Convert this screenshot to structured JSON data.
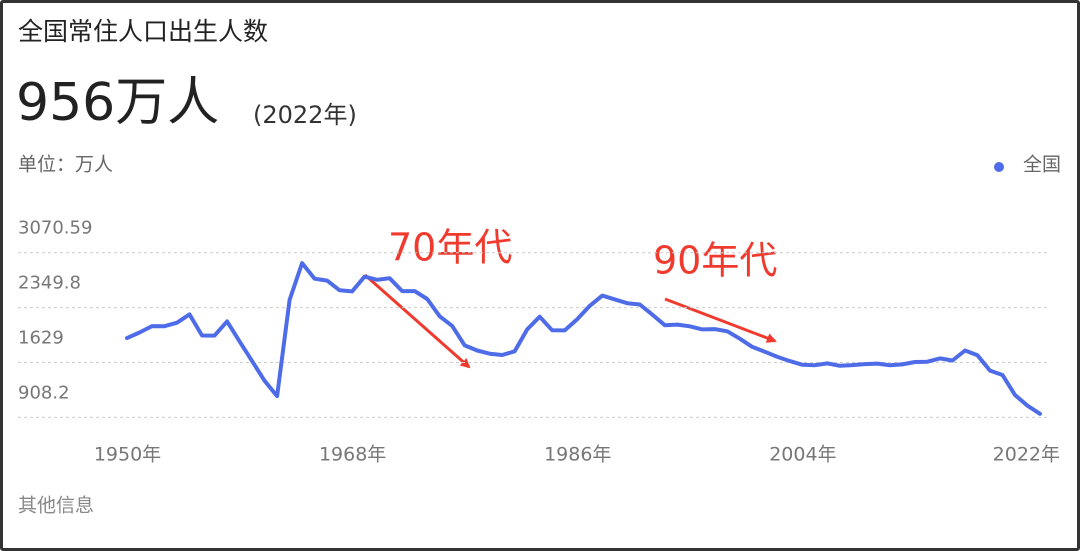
{
  "chart_data": {
    "type": "line",
    "title": "全国常住人口出生人数",
    "headline": "956万人",
    "headline_note": "(2022年)",
    "unit_label": "单位：万人",
    "footer": "其他信息",
    "annotations": [
      "70年代",
      "90年代"
    ],
    "legend_position": "top-right",
    "grid": true,
    "x": [
      1949,
      1950,
      1951,
      1952,
      1953,
      1954,
      1955,
      1956,
      1957,
      1958,
      1959,
      1960,
      1961,
      1962,
      1963,
      1964,
      1965,
      1966,
      1967,
      1968,
      1969,
      1970,
      1971,
      1972,
      1973,
      1974,
      1975,
      1976,
      1977,
      1978,
      1979,
      1980,
      1981,
      1982,
      1983,
      1984,
      1985,
      1986,
      1987,
      1988,
      1989,
      1990,
      1991,
      1992,
      1993,
      1994,
      1995,
      1996,
      1997,
      1998,
      1999,
      2000,
      2001,
      2002,
      2003,
      2004,
      2005,
      2006,
      2007,
      2008,
      2009,
      2010,
      2011,
      2012,
      2013,
      2014,
      2015,
      2016,
      2017,
      2018,
      2019,
      2020,
      2021,
      2022
    ],
    "series": [
      {
        "name": "全国",
        "color": "#4f6ce8",
        "values": [
          1950,
          2023,
          2107,
          2105,
          2151,
          2260,
          1984,
          1982,
          2169,
          1905,
          1647,
          1389,
          1188,
          2451,
          2934,
          2729,
          2704,
          2577,
          2563,
          2757,
          2715,
          2736,
          2567,
          2566,
          2463,
          2235,
          2109,
          1853,
          1786,
          1745,
          1727,
          1776,
          2064,
          2230,
          2052,
          2050,
          2196,
          2374,
          2508,
          2457,
          2407,
          2391,
          2258,
          2119,
          2126,
          2104,
          2063,
          2067,
          2038,
          1942,
          1834,
          1771,
          1702,
          1647,
          1599,
          1593,
          1617,
          1585,
          1595,
          1608,
          1615,
          1592,
          1604,
          1635,
          1640,
          1683,
          1655,
          1786,
          1723,
          1523,
          1465,
          1202,
          1062,
          956
        ]
      }
    ],
    "xlim": [
      1949,
      2022
    ],
    "xticks": [
      {
        "value": 1950,
        "label": "1950年"
      },
      {
        "value": 1968,
        "label": "1968年"
      },
      {
        "value": 1986,
        "label": "1986年"
      },
      {
        "value": 2004,
        "label": "2004年"
      },
      {
        "value": 2022,
        "label": "2022年"
      }
    ],
    "ylim": [
      572,
      3395
    ],
    "yticks": [
      908.2,
      1629,
      2349.8,
      3070.59
    ]
  }
}
